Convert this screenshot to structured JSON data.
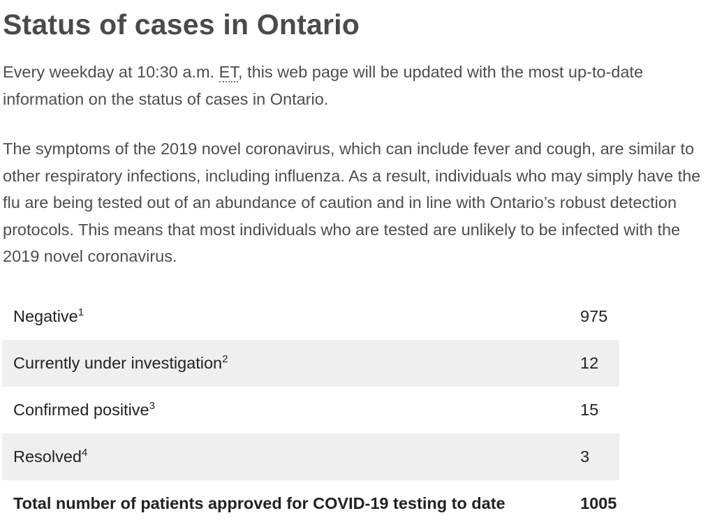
{
  "header": {
    "title": "Status of cases in Ontario"
  },
  "intro": {
    "before": "Every weekday at 10:30 a.m. ",
    "abbr": "ET",
    "after": ", this web page will be updated with the most up-to-date information on the status of cases in Ontario."
  },
  "paragraph": "The symptoms of the 2019 novel coronavirus, which can include fever and cough, are similar to other respiratory infections, including influenza. As a result, individuals who may simply have the flu are being tested out of an abundance of caution and in line with Ontario’s robust detection protocols. This means that most individuals who are tested are unlikely to be infected with the 2019 novel coronavirus.",
  "table": {
    "rows": [
      {
        "label": "Negative",
        "note": "1",
        "value": 975
      },
      {
        "label": "Currently under investigation",
        "note": "2",
        "value": 12
      },
      {
        "label": "Confirmed positive",
        "note": "3",
        "value": 15
      },
      {
        "label": "Resolved",
        "note": "4",
        "value": 3
      }
    ],
    "total": {
      "label": "Total number of patients approved for COVID-19 testing to date",
      "value": 1005
    }
  }
}
